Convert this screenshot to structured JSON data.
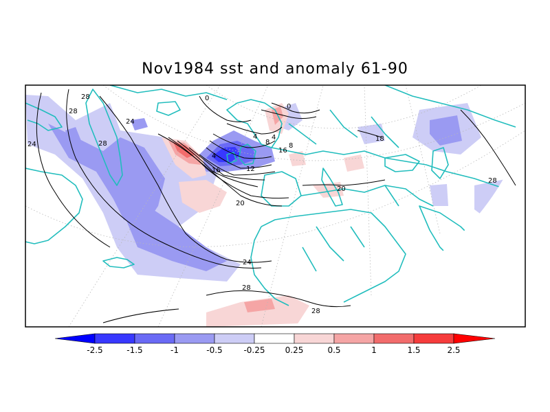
{
  "title": "Nov1984 sst and anomaly 61-90",
  "contour_labels": [
    "28",
    "28",
    "24",
    "24",
    "28",
    "0",
    "4",
    "4",
    "0",
    "4",
    "16",
    "8",
    "12",
    "8",
    "16",
    "20",
    "20",
    "24",
    "28",
    "28",
    "28",
    "18"
  ],
  "colorbar": {
    "colors": [
      "#0000ff",
      "#3838ff",
      "#6a6af5",
      "#9a9af2",
      "#cdcdf6",
      "#ffffff",
      "#f8d6d6",
      "#f5a5a5",
      "#f26c6c",
      "#f63c3c",
      "#ff0000"
    ],
    "ticks": [
      "-2.5",
      "-1.5",
      "-1",
      "-0.5",
      "-0.25",
      "0.25",
      "0.5",
      "1",
      "1.5",
      "2.5"
    ]
  },
  "colors": {
    "coastline": "#21bdbd",
    "contour": "#000000"
  }
}
